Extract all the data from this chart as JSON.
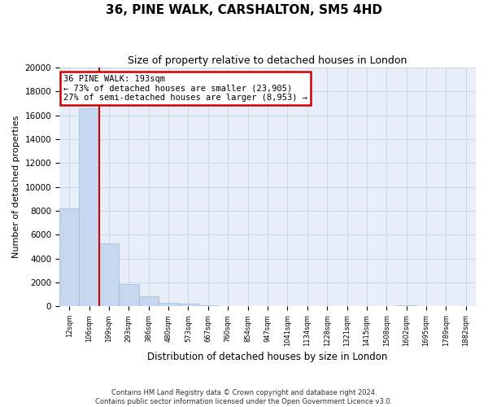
{
  "title": "36, PINE WALK, CARSHALTON, SM5 4HD",
  "subtitle": "Size of property relative to detached houses in London",
  "xlabel": "Distribution of detached houses by size in London",
  "ylabel": "Number of detached properties",
  "bin_labels": [
    "12sqm",
    "106sqm",
    "199sqm",
    "293sqm",
    "386sqm",
    "480sqm",
    "573sqm",
    "667sqm",
    "760sqm",
    "854sqm",
    "947sqm",
    "1041sqm",
    "1134sqm",
    "1228sqm",
    "1321sqm",
    "1415sqm",
    "1508sqm",
    "1602sqm",
    "1695sqm",
    "1789sqm",
    "1882sqm"
  ],
  "bar_values": [
    8200,
    16600,
    5300,
    1850,
    800,
    300,
    200,
    100,
    0,
    0,
    0,
    0,
    0,
    0,
    0,
    0,
    0,
    100,
    0,
    0,
    0
  ],
  "bar_color": "#c5d8f0",
  "bar_edge_color": "#a0b8d8",
  "annotation_line1": "36 PINE WALK: 193sqm",
  "annotation_line2": "← 73% of detached houses are smaller (23,905)",
  "annotation_line3": "27% of semi-detached houses are larger (8,953) →",
  "annotation_box_color": "#ffffff",
  "annotation_border_color": "#cc0000",
  "vline_color": "#cc0000",
  "ylim": [
    0,
    20000
  ],
  "yticks": [
    0,
    2000,
    4000,
    6000,
    8000,
    10000,
    12000,
    14000,
    16000,
    18000,
    20000
  ],
  "grid_color": "#cdd6e8",
  "background_color": "#e8eef8",
  "fig_facecolor": "#ffffff",
  "footer_line1": "Contains HM Land Registry data © Crown copyright and database right 2024.",
  "footer_line2": "Contains public sector information licensed under the Open Government Licence v3.0."
}
